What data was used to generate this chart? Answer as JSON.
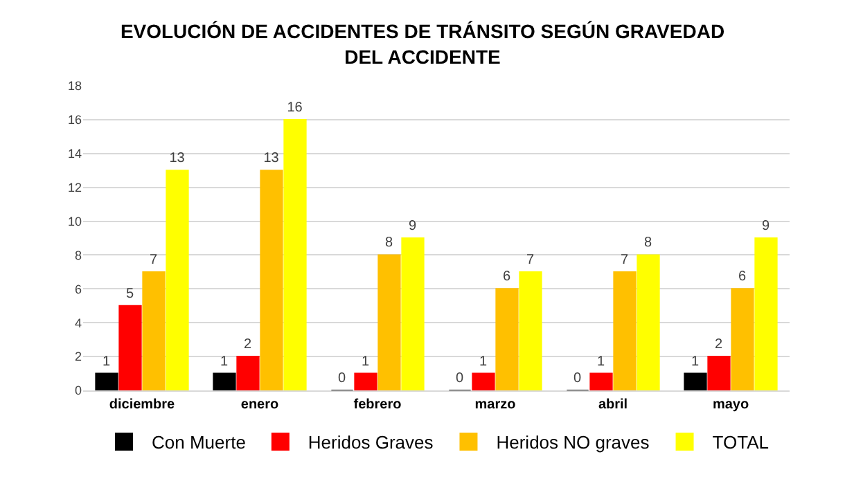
{
  "chart_data": {
    "type": "bar",
    "title": "EVOLUCIÓN DE ACCIDENTES DE TRÁNSITO SEGÚN GRAVEDAD DEL ACCIDENTE",
    "categories": [
      "diciembre",
      "enero",
      "febrero",
      "marzo",
      "abril",
      "mayo"
    ],
    "series": [
      {
        "name": "Con Muerte",
        "color": "#000000",
        "values": [
          1,
          1,
          0,
          0,
          0,
          1
        ]
      },
      {
        "name": "Heridos Graves",
        "color": "#ff0000",
        "values": [
          5,
          2,
          1,
          1,
          1,
          2
        ]
      },
      {
        "name": "Heridos NO graves",
        "color": "#ffc000",
        "values": [
          7,
          13,
          8,
          6,
          7,
          6
        ]
      },
      {
        "name": "TOTAL",
        "color": "#ffff00",
        "values": [
          13,
          16,
          9,
          7,
          8,
          9
        ]
      }
    ],
    "ylim": [
      0,
      18
    ],
    "yticks": [
      0,
      2,
      4,
      6,
      8,
      10,
      12,
      14,
      16,
      18
    ],
    "grid": "y",
    "legend": "bottom",
    "data_labels": true
  }
}
